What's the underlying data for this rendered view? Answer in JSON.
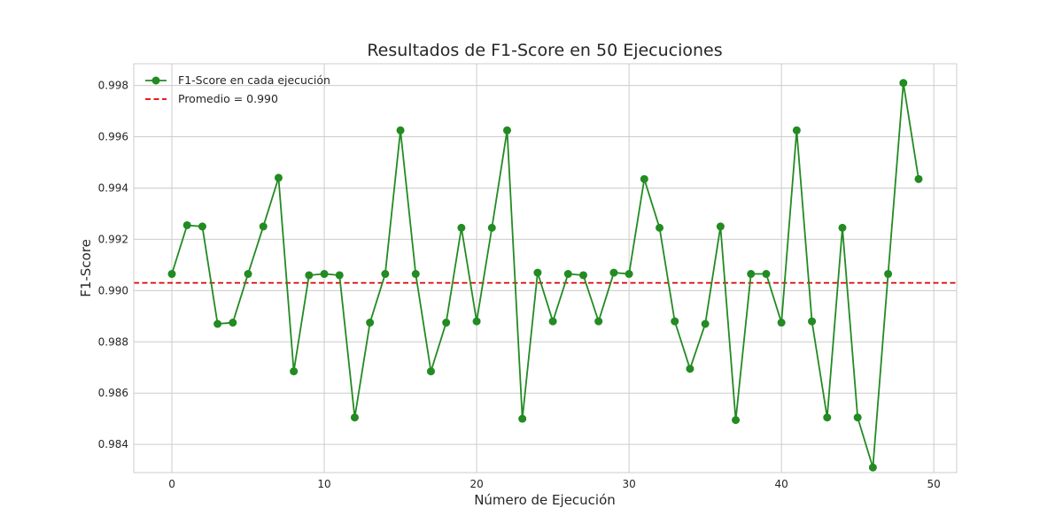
{
  "chart_data": {
    "type": "line",
    "title": "Resultados de F1-Score en 50 Ejecuciones",
    "xlabel": "Número de Ejecución",
    "ylabel": "F1-Score",
    "xlim": [
      -2.5,
      51.5
    ],
    "ylim": [
      0.9829,
      0.99885
    ],
    "xticks": [
      0,
      10,
      20,
      30,
      40,
      50
    ],
    "yticks": [
      0.984,
      0.986,
      0.988,
      0.99,
      0.992,
      0.994,
      0.996,
      0.998
    ],
    "ytick_labels": [
      "0.984",
      "0.986",
      "0.988",
      "0.990",
      "0.992",
      "0.994",
      "0.996",
      "0.998"
    ],
    "grid": true,
    "legend_position": "top-left",
    "series": [
      {
        "name": "F1-Score en cada ejecución",
        "color": "#228B22",
        "marker": "circle",
        "x": [
          0,
          1,
          2,
          3,
          4,
          5,
          6,
          7,
          8,
          9,
          10,
          11,
          12,
          13,
          14,
          15,
          16,
          17,
          18,
          19,
          20,
          21,
          22,
          23,
          24,
          25,
          26,
          27,
          28,
          29,
          30,
          31,
          32,
          33,
          34,
          35,
          36,
          37,
          38,
          39,
          40,
          41,
          42,
          43,
          44,
          45,
          46,
          47,
          48,
          49
        ],
        "values": [
          0.99065,
          0.99255,
          0.9925,
          0.9887,
          0.98875,
          0.99065,
          0.9925,
          0.9944,
          0.98685,
          0.9906,
          0.99065,
          0.9906,
          0.98505,
          0.98875,
          0.99065,
          0.99625,
          0.99065,
          0.98685,
          0.98875,
          0.99245,
          0.9888,
          0.99245,
          0.99625,
          0.985,
          0.9907,
          0.9888,
          0.99065,
          0.9906,
          0.9888,
          0.9907,
          0.99065,
          0.99435,
          0.99245,
          0.9888,
          0.98695,
          0.9887,
          0.9925,
          0.98495,
          0.99065,
          0.99065,
          0.98875,
          0.99625,
          0.9888,
          0.98505,
          0.99245,
          0.98505,
          0.9831,
          0.99065,
          0.9981,
          0.99435
        ]
      }
    ],
    "reference_line": {
      "name": "Promedio = 0.990",
      "value": 0.9903,
      "color": "#E00000",
      "style": "dashed"
    }
  }
}
